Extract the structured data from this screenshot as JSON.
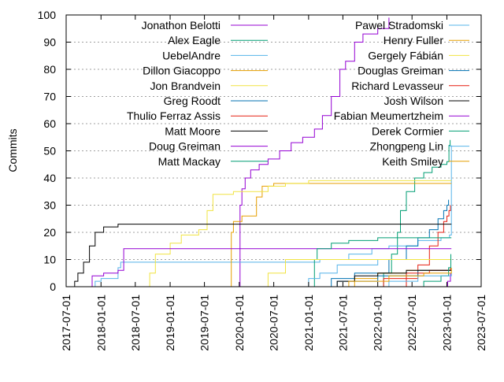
{
  "chart_data": {
    "type": "line",
    "title": "",
    "xlabel": "",
    "ylabel": "Commits",
    "x_ticks": [
      "2017-07-01",
      "2018-01-01",
      "2018-07-01",
      "2019-01-01",
      "2019-07-01",
      "2020-01-01",
      "2020-07-01",
      "2021-01-01",
      "2021-07-01",
      "2022-01-01",
      "2022-07-01",
      "2023-01-01",
      "2023-07-01"
    ],
    "y_ticks": [
      0,
      10,
      20,
      30,
      40,
      50,
      60,
      70,
      80,
      90,
      100
    ],
    "xlim": [
      "2017-07-01",
      "2023-07-01"
    ],
    "ylim": [
      0,
      100
    ],
    "grid": "horizontal dashed at y ticks",
    "legend_placement": "top, two columns",
    "series": [
      {
        "name": "Jonathon Belotti",
        "color": "#9400d3",
        "step": true,
        "points": [
          [
            "2019-12-25",
            0
          ],
          [
            "2020-01-05",
            30
          ],
          [
            "2020-01-15",
            36
          ],
          [
            "2020-02-01",
            40
          ],
          [
            "2020-03-01",
            43
          ],
          [
            "2020-04-15",
            45
          ],
          [
            "2020-06-01",
            47
          ],
          [
            "2020-08-01",
            50
          ],
          [
            "2020-10-01",
            53
          ],
          [
            "2020-12-01",
            55
          ],
          [
            "2021-02-01",
            58
          ],
          [
            "2021-03-15",
            63
          ],
          [
            "2021-05-01",
            70
          ],
          [
            "2021-06-15",
            80
          ],
          [
            "2021-07-15",
            83
          ],
          [
            "2021-09-01",
            90
          ],
          [
            "2021-10-15",
            93
          ],
          [
            "2022-01-01",
            95
          ],
          [
            "2022-03-01",
            99
          ]
        ]
      },
      {
        "name": "Alex Eagle",
        "color": "#009e73",
        "step": true,
        "points": [
          [
            "2022-01-01",
            0
          ],
          [
            "2022-02-01",
            5
          ],
          [
            "2022-03-15",
            12
          ],
          [
            "2022-04-15",
            20
          ],
          [
            "2022-05-01",
            28
          ],
          [
            "2022-06-01",
            35
          ],
          [
            "2022-07-15",
            40
          ],
          [
            "2022-09-01",
            42
          ],
          [
            "2022-10-15",
            44
          ],
          [
            "2022-12-01",
            45
          ],
          [
            "2023-01-01",
            46
          ],
          [
            "2023-01-12",
            52
          ],
          [
            "2023-01-18",
            54
          ]
        ]
      },
      {
        "name": "UebelAndre",
        "color": "#56b4e9",
        "step": true,
        "points": [
          [
            "2017-11-15",
            0
          ],
          [
            "2017-12-01",
            2
          ],
          [
            "2018-01-01",
            3
          ],
          [
            "2018-04-01",
            7
          ],
          [
            "2018-04-15",
            9
          ],
          [
            "2020-06-01",
            9
          ],
          [
            "2021-01-01",
            9
          ],
          [
            "2021-03-01",
            10
          ],
          [
            "2021-08-01",
            12
          ],
          [
            "2021-12-01",
            14
          ],
          [
            "2022-03-01",
            15
          ],
          [
            "2022-08-01",
            17
          ],
          [
            "2022-12-01",
            18
          ],
          [
            "2023-01-15",
            19
          ],
          [
            "2023-01-25",
            52
          ]
        ]
      },
      {
        "name": "Dillon Giacoppo",
        "color": "#e69f00",
        "step": true,
        "points": [
          [
            "2019-11-15",
            0
          ],
          [
            "2019-11-20",
            20
          ],
          [
            "2019-12-01",
            24
          ],
          [
            "2020-01-15",
            26
          ],
          [
            "2020-03-01",
            26
          ],
          [
            "2020-04-01",
            33
          ],
          [
            "2020-05-01",
            37
          ],
          [
            "2020-07-01",
            38
          ],
          [
            "2021-01-01",
            38
          ],
          [
            "2023-01-25",
            38
          ]
        ]
      },
      {
        "name": "Jon Brandvein",
        "color": "#f0e442",
        "step": true,
        "points": [
          [
            "2018-09-01",
            0
          ],
          [
            "2018-09-15",
            5
          ],
          [
            "2018-10-15",
            12
          ],
          [
            "2019-01-01",
            16
          ],
          [
            "2019-03-01",
            19
          ],
          [
            "2019-06-01",
            21
          ],
          [
            "2019-07-15",
            28
          ],
          [
            "2019-08-15",
            34
          ],
          [
            "2019-12-01",
            35
          ],
          [
            "2020-06-01",
            37
          ],
          [
            "2020-09-01",
            38
          ],
          [
            "2021-01-01",
            39
          ],
          [
            "2023-01-25",
            39
          ]
        ]
      },
      {
        "name": "Greg Roodt",
        "color": "#0072b2",
        "step": true,
        "points": [
          [
            "2021-02-01",
            0
          ],
          [
            "2021-05-01",
            3
          ],
          [
            "2021-09-01",
            5
          ],
          [
            "2022-03-01",
            10
          ],
          [
            "2022-06-01",
            15
          ],
          [
            "2022-08-01",
            18
          ],
          [
            "2022-10-01",
            21
          ],
          [
            "2022-11-15",
            25
          ],
          [
            "2022-12-15",
            28
          ],
          [
            "2023-01-01",
            30
          ],
          [
            "2023-01-10",
            32
          ]
        ]
      },
      {
        "name": "Thulio Ferraz Assis",
        "color": "#e51e10",
        "step": true,
        "points": [
          [
            "2022-04-01",
            0
          ],
          [
            "2022-06-01",
            3
          ],
          [
            "2022-08-01",
            8
          ],
          [
            "2022-10-01",
            15
          ],
          [
            "2022-11-15",
            20
          ],
          [
            "2022-12-15",
            24
          ],
          [
            "2023-01-01",
            26
          ],
          [
            "2023-01-12",
            28
          ],
          [
            "2023-01-20",
            30
          ]
        ]
      },
      {
        "name": "Matt Moore",
        "color": "#000000",
        "step": true,
        "points": [
          [
            "2017-08-01",
            0
          ],
          [
            "2017-08-15",
            2
          ],
          [
            "2017-09-01",
            5
          ],
          [
            "2017-10-01",
            9
          ],
          [
            "2017-11-01",
            15
          ],
          [
            "2017-12-01",
            20
          ],
          [
            "2018-01-15",
            22
          ],
          [
            "2018-04-01",
            23
          ],
          [
            "2023-01-25",
            23
          ]
        ]
      },
      {
        "name": "Doug Greiman",
        "color": "#9400d3",
        "step": true,
        "points": [
          [
            "2017-11-01",
            0
          ],
          [
            "2017-11-15",
            4
          ],
          [
            "2018-01-15",
            5
          ],
          [
            "2018-04-01",
            6
          ],
          [
            "2018-05-01",
            14
          ],
          [
            "2023-01-25",
            14
          ]
        ]
      },
      {
        "name": "Matt Mackay",
        "color": "#009e73",
        "step": true,
        "points": [
          [
            "2021-01-15",
            0
          ],
          [
            "2021-02-01",
            10
          ],
          [
            "2021-02-15",
            14
          ],
          [
            "2021-05-01",
            16
          ],
          [
            "2021-08-01",
            17
          ],
          [
            "2022-01-01",
            18
          ],
          [
            "2023-01-25",
            18
          ]
        ]
      },
      {
        "name": "Pawel Stradomski",
        "color": "#56b4e9",
        "step": true,
        "points": [
          [
            "2020-08-01",
            0
          ],
          [
            "2021-01-01",
            3
          ],
          [
            "2021-03-01",
            5
          ],
          [
            "2021-06-01",
            8
          ],
          [
            "2022-01-01",
            10
          ],
          [
            "2023-01-25",
            10
          ]
        ]
      },
      {
        "name": "Henry Fuller",
        "color": "#e69f00",
        "step": true,
        "points": [
          [
            "2021-06-01",
            0
          ],
          [
            "2021-09-01",
            3
          ],
          [
            "2022-01-01",
            5
          ],
          [
            "2022-06-01",
            6
          ],
          [
            "2023-01-25",
            7
          ]
        ]
      },
      {
        "name": "Gergely Fábián",
        "color": "#f0e442",
        "step": true,
        "points": [
          [
            "2020-04-01",
            0
          ],
          [
            "2020-06-01",
            5
          ],
          [
            "2020-09-01",
            10
          ],
          [
            "2021-01-01",
            10
          ],
          [
            "2023-01-25",
            10
          ]
        ]
      },
      {
        "name": "Douglas Greiman",
        "color": "#0072b2",
        "step": true,
        "points": [
          [
            "2021-03-01",
            0
          ],
          [
            "2021-06-01",
            2
          ],
          [
            "2022-01-01",
            4
          ],
          [
            "2022-08-01",
            6
          ],
          [
            "2023-01-25",
            6
          ]
        ]
      },
      {
        "name": "Richard Levasseur",
        "color": "#e51e10",
        "step": true,
        "points": [
          [
            "2021-09-01",
            0
          ],
          [
            "2022-02-01",
            3
          ],
          [
            "2022-06-01",
            5
          ],
          [
            "2022-10-01",
            6
          ],
          [
            "2023-01-20",
            7
          ]
        ]
      },
      {
        "name": "Josh Wilson",
        "color": "#000000",
        "step": true,
        "points": [
          [
            "2021-04-01",
            0
          ],
          [
            "2021-06-01",
            2
          ],
          [
            "2021-09-01",
            4
          ],
          [
            "2022-01-01",
            5
          ],
          [
            "2022-06-01",
            6
          ],
          [
            "2023-01-25",
            6
          ]
        ]
      },
      {
        "name": "Fabian Meumertzheim",
        "color": "#9400d3",
        "step": true,
        "points": [
          [
            "2022-12-15",
            0
          ],
          [
            "2023-01-05",
            2
          ],
          [
            "2023-01-20",
            5
          ]
        ]
      },
      {
        "name": "Derek Cormier",
        "color": "#009e73",
        "step": true,
        "points": [
          [
            "2022-06-01",
            0
          ],
          [
            "2022-09-01",
            2
          ],
          [
            "2022-12-01",
            4
          ],
          [
            "2023-01-10",
            7
          ],
          [
            "2023-01-22",
            12
          ]
        ]
      },
      {
        "name": "Zhongpeng Lin",
        "color": "#56b4e9",
        "step": true,
        "points": [
          [
            "2021-10-01",
            0
          ],
          [
            "2022-03-01",
            2
          ],
          [
            "2022-08-01",
            4
          ],
          [
            "2023-01-25",
            5
          ]
        ]
      },
      {
        "name": "Keith Smiley",
        "color": "#e69f00",
        "step": true,
        "points": [
          [
            "2021-01-01",
            0
          ],
          [
            "2021-08-01",
            2
          ],
          [
            "2022-03-01",
            4
          ],
          [
            "2022-09-01",
            5
          ],
          [
            "2023-01-25",
            6
          ]
        ]
      }
    ]
  }
}
